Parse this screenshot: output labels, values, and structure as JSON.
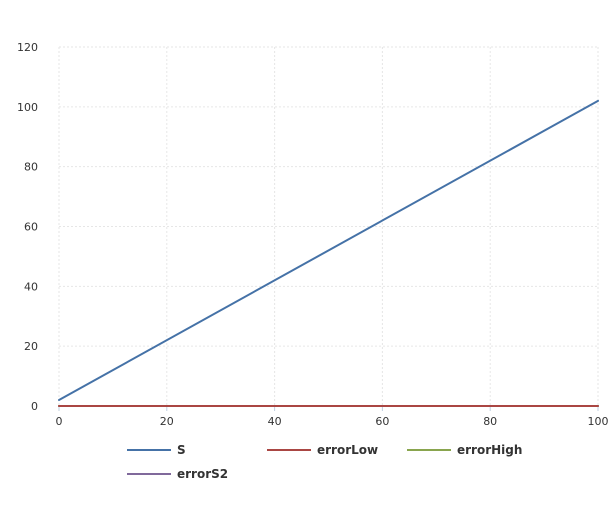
{
  "chart_data": {
    "type": "line",
    "xlim": [
      0,
      100
    ],
    "ylim": [
      0,
      120
    ],
    "x_ticks": [
      0,
      20,
      40,
      60,
      80,
      100
    ],
    "y_ticks": [
      0,
      20,
      40,
      60,
      80,
      100,
      120
    ],
    "grid": true,
    "legend_position": "bottom",
    "series": [
      {
        "name": "S",
        "color": "#4572a7",
        "x": [
          0,
          100
        ],
        "y": [
          2,
          102
        ]
      },
      {
        "name": "errorLow",
        "color": "#aa4643",
        "x": [
          0,
          100
        ],
        "y": [
          0,
          0
        ]
      },
      {
        "name": "errorHigh",
        "color": "#89a54e",
        "x": [
          0,
          100
        ],
        "y": [
          0,
          0
        ]
      },
      {
        "name": "errorS2",
        "color": "#80699b",
        "x": [
          0,
          100
        ],
        "y": [
          0,
          0
        ]
      }
    ]
  }
}
